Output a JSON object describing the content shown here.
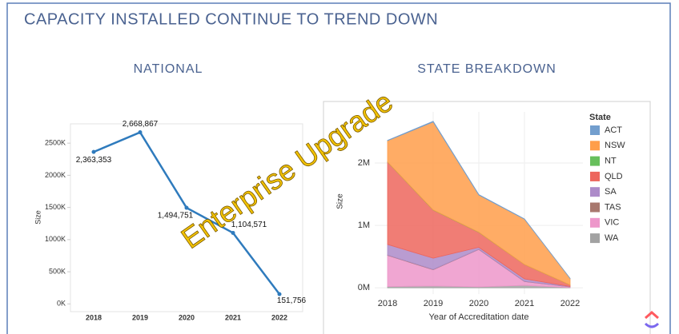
{
  "title": "CAPACITY INSTALLED CONTINUE TO TREND DOWN",
  "watermark": "Enterprise Upgrade",
  "chart_data": [
    {
      "type": "line",
      "title": "NATIONAL",
      "y_label": "Size",
      "categories": [
        "2018",
        "2019",
        "2020",
        "2021",
        "2022"
      ],
      "values": [
        2363353,
        2668867,
        1494751,
        1104571,
        151756
      ],
      "value_labels": [
        "2,363,353",
        "2,668,867",
        "1,494,751",
        "1,104,571",
        "151,756"
      ],
      "color": "#2f7bbd",
      "ylim": [
        -120000,
        2800000
      ],
      "yticks": [
        {
          "value": 0,
          "label": "0K"
        },
        {
          "value": 500000,
          "label": "500K"
        },
        {
          "value": 1000000,
          "label": "1000K"
        },
        {
          "value": 1500000,
          "label": "1500K"
        },
        {
          "value": 2000000,
          "label": "2000K"
        },
        {
          "value": 2500000,
          "label": "2500K"
        }
      ],
      "grid": false
    },
    {
      "type": "stacked_area",
      "title": "STATE BREAKDOWN",
      "y_label": "Size",
      "x_label": "Year of Accreditation date",
      "legend_title": "State",
      "legend": "right",
      "categories": [
        "2018",
        "2019",
        "2020",
        "2021",
        "2022"
      ],
      "series": [
        {
          "name": "ACT",
          "color": "#729ece",
          "values": [
            5353,
            9867,
            7751,
            4571,
            1756
          ]
        },
        {
          "name": "NSW",
          "color": "#ff9e4a",
          "values": [
            340000,
            1410000,
            595000,
            725000,
            103000
          ]
        },
        {
          "name": "NT",
          "color": "#67bf5c",
          "values": [
            3000,
            4000,
            3000,
            2000,
            1000
          ]
        },
        {
          "name": "QLD",
          "color": "#ed665d",
          "values": [
            1320000,
            770000,
            240000,
            230000,
            25000
          ]
        },
        {
          "name": "SA",
          "color": "#ad8bc9",
          "values": [
            170000,
            180000,
            30000,
            40000,
            5000
          ]
        },
        {
          "name": "TAS",
          "color": "#a8786e",
          "values": [
            5000,
            5000,
            4000,
            3000,
            1000
          ]
        },
        {
          "name": "VIC",
          "color": "#ed97ca",
          "values": [
            500000,
            260000,
            600000,
            60000,
            10000
          ]
        },
        {
          "name": "WA",
          "color": "#a2a2a2",
          "values": [
            20000,
            30000,
            15000,
            40000,
            5000
          ]
        }
      ],
      "ylim": [
        -100000,
        2820000
      ],
      "yticks": [
        {
          "value": 0,
          "label": "0M"
        },
        {
          "value": 1000000,
          "label": "1M"
        },
        {
          "value": 2000000,
          "label": "2M"
        }
      ],
      "grid": true
    }
  ]
}
